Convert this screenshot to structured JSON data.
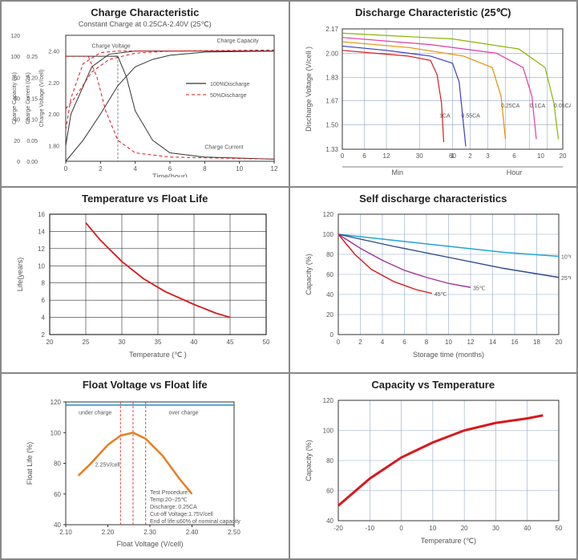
{
  "chart1": {
    "type": "line",
    "title": "Charge Characteristic",
    "subtitle": "Constant Charge at 0.25CA-2.40V (25℃)",
    "y_left_labels": [
      "Charge Capacity (%)",
      "Charge Current (CA)",
      "Charge Voltage (V/cell)"
    ],
    "x_label": "Time(hour)",
    "x_ticks": [
      0,
      2,
      4,
      6,
      8,
      10,
      12
    ],
    "y_capacity_ticks": [
      0,
      20,
      40,
      60,
      80,
      100,
      120
    ],
    "y_current_ticks": [
      0,
      0.05,
      0.1,
      0.15,
      0.2,
      0.25
    ],
    "y_voltage_ticks": [
      1.8,
      2.0,
      2.2,
      2.4
    ],
    "annotations": {
      "cv": "Charge Voltage",
      "cc": "Charge Capacity",
      "ci": "Charge Current"
    },
    "legend": [
      {
        "label": "100%Discharge",
        "color": "#000000"
      },
      {
        "label": "50%Discharge",
        "color": "#d7191c"
      }
    ],
    "colors": {
      "axis": "#333",
      "grid": "#bbb",
      "voltage": "#333",
      "capacity100": "#333",
      "capacity50": "#d7191c",
      "current100": "#333",
      "current50": "#d7191c"
    },
    "series": {
      "voltage100": [
        [
          0,
          1.8
        ],
        [
          0.3,
          2.0
        ],
        [
          1.5,
          2.3
        ],
        [
          2.5,
          2.38
        ],
        [
          4,
          2.4
        ],
        [
          12,
          2.4
        ]
      ],
      "voltage50": [
        [
          0,
          1.9
        ],
        [
          0.3,
          2.1
        ],
        [
          1.0,
          2.32
        ],
        [
          2.0,
          2.39
        ],
        [
          3,
          2.4
        ],
        [
          12,
          2.4
        ]
      ],
      "capacity100": [
        [
          0,
          0
        ],
        [
          1,
          20
        ],
        [
          2,
          45
        ],
        [
          3,
          72
        ],
        [
          4,
          90
        ],
        [
          5,
          97
        ],
        [
          6,
          101
        ],
        [
          8,
          104
        ],
        [
          12,
          105
        ]
      ],
      "capacity50": [
        [
          0,
          50
        ],
        [
          0.5,
          60
        ],
        [
          1.5,
          85
        ],
        [
          2.5,
          97
        ],
        [
          4,
          103
        ],
        [
          6,
          105
        ],
        [
          12,
          106
        ]
      ],
      "current100": [
        [
          0,
          0.25
        ],
        [
          3,
          0.25
        ],
        [
          3.5,
          0.2
        ],
        [
          4,
          0.12
        ],
        [
          5,
          0.05
        ],
        [
          6,
          0.02
        ],
        [
          8,
          0.01
        ],
        [
          12,
          0.005
        ]
      ],
      "current50": [
        [
          0,
          0.25
        ],
        [
          1.3,
          0.25
        ],
        [
          1.8,
          0.2
        ],
        [
          2.3,
          0.12
        ],
        [
          3,
          0.05
        ],
        [
          4,
          0.02
        ],
        [
          6,
          0.01
        ],
        [
          12,
          0.005
        ]
      ]
    }
  },
  "chart2": {
    "type": "line",
    "title": "Discharge Characteristic (25℃)",
    "y_label": "Discharge Voltage (V/cell )",
    "x_label_left": "Min",
    "x_label_right": "Hour",
    "x_ticks_min": [
      0,
      6,
      12,
      30,
      60
    ],
    "x_ticks_hr": [
      1,
      2,
      3,
      6,
      10,
      20
    ],
    "y_ticks": [
      1.33,
      1.5,
      1.67,
      1.83,
      2.0,
      2.17
    ],
    "grid_color": "#93a8c4",
    "background_color": "#ffffff",
    "series": [
      {
        "label": "1CA",
        "color": "#d7191c",
        "data": [
          [
            0,
            2.02
          ],
          [
            0.15,
            2.0
          ],
          [
            0.3,
            1.98
          ],
          [
            0.4,
            1.95
          ],
          [
            0.43,
            1.85
          ],
          [
            0.45,
            1.65
          ],
          [
            0.46,
            1.38
          ]
        ]
      },
      {
        "label": "0.55CA",
        "color": "#3b3bc4",
        "data": [
          [
            0,
            2.05
          ],
          [
            0.2,
            2.02
          ],
          [
            0.4,
            1.98
          ],
          [
            0.5,
            1.93
          ],
          [
            0.53,
            1.8
          ],
          [
            0.55,
            1.5
          ],
          [
            0.56,
            1.35
          ]
        ]
      },
      {
        "label": "0.25CA",
        "color": "#e58f00",
        "data": [
          [
            0,
            2.08
          ],
          [
            0.3,
            2.04
          ],
          [
            0.55,
            1.98
          ],
          [
            0.68,
            1.9
          ],
          [
            0.72,
            1.7
          ],
          [
            0.74,
            1.4
          ]
        ]
      },
      {
        "label": "0.1CA",
        "color": "#e03ba8",
        "data": [
          [
            0,
            2.11
          ],
          [
            0.4,
            2.06
          ],
          [
            0.7,
            2.0
          ],
          [
            0.82,
            1.9
          ],
          [
            0.86,
            1.7
          ],
          [
            0.88,
            1.4
          ]
        ]
      },
      {
        "label": "0.05CA",
        "color": "#8bb500",
        "data": [
          [
            0,
            2.14
          ],
          [
            0.5,
            2.1
          ],
          [
            0.8,
            2.03
          ],
          [
            0.92,
            1.9
          ],
          [
            0.96,
            1.65
          ],
          [
            0.98,
            1.4
          ]
        ]
      }
    ]
  },
  "chart3": {
    "type": "line",
    "title": "Temperature vs Float Life",
    "x_label": "Temperature (℃ )",
    "y_label": "Life(years)",
    "x_ticks": [
      20,
      25,
      30,
      35,
      40,
      45,
      50
    ],
    "y_ticks": [
      2,
      4,
      6,
      8,
      10,
      12,
      14,
      16
    ],
    "grid_color": "#000",
    "line_color": "#d7191c",
    "data": [
      [
        25,
        15
      ],
      [
        27,
        13
      ],
      [
        30,
        10.5
      ],
      [
        33,
        8.5
      ],
      [
        36,
        7
      ],
      [
        40,
        5.5
      ],
      [
        43,
        4.5
      ],
      [
        45,
        4
      ]
    ]
  },
  "chart4": {
    "type": "line",
    "title": "Self discharge characteristics",
    "x_label": "Storage time (months)",
    "y_label": "Capacity (%)",
    "x_ticks": [
      0,
      2,
      4,
      6,
      8,
      10,
      12,
      14,
      16,
      18,
      20
    ],
    "y_ticks": [
      0,
      20,
      40,
      60,
      80,
      100,
      120
    ],
    "grid_color": "#93a8c4",
    "series": [
      {
        "label": "10℃",
        "color": "#1ea6d9",
        "data": [
          [
            0,
            100
          ],
          [
            5,
            94
          ],
          [
            10,
            88
          ],
          [
            15,
            82
          ],
          [
            20,
            78
          ]
        ]
      },
      {
        "label": "25℃",
        "color": "#2b4a8b",
        "data": [
          [
            0,
            100
          ],
          [
            5,
            88
          ],
          [
            10,
            77
          ],
          [
            15,
            66
          ],
          [
            20,
            57
          ]
        ]
      },
      {
        "label": "35℃",
        "color": "#a1339b",
        "data": [
          [
            0,
            100
          ],
          [
            2,
            86
          ],
          [
            4,
            74
          ],
          [
            6,
            64
          ],
          [
            8,
            57
          ],
          [
            10,
            51
          ],
          [
            12,
            47
          ]
        ]
      },
      {
        "label": "45℃",
        "color": "#d7191c",
        "data": [
          [
            0,
            100
          ],
          [
            1.5,
            80
          ],
          [
            3,
            65
          ],
          [
            5,
            53
          ],
          [
            7,
            45
          ],
          [
            8.5,
            41
          ]
        ]
      }
    ]
  },
  "chart5": {
    "type": "line",
    "title": "Float Voltage vs Float life",
    "x_label": "Float Voltage (V/cell)",
    "y_label": "Float Life (%)",
    "x_ticks": [
      2.1,
      2.2,
      2.3,
      2.4,
      2.5
    ],
    "y_ticks": [
      40,
      60,
      80,
      100,
      120
    ],
    "zone_labels": {
      "under": "under charge",
      "over": "over charge"
    },
    "center_voltage_label": "2.25V/cell",
    "note_header": "Test Procedure:",
    "notes": [
      "Temp:20~25℃",
      "Discharge: 0.25CA",
      "Cut-off Voltage:1.75V/cell",
      "End of life:≤60% of nominal capacity"
    ],
    "line_color": "#e67e22",
    "guide_color": "#1e90c8",
    "dash_color": "#d7191c",
    "data": [
      [
        2.13,
        72
      ],
      [
        2.16,
        80
      ],
      [
        2.2,
        92
      ],
      [
        2.23,
        98
      ],
      [
        2.26,
        100
      ],
      [
        2.29,
        96
      ],
      [
        2.33,
        85
      ],
      [
        2.37,
        70
      ],
      [
        2.4,
        60
      ]
    ]
  },
  "chart6": {
    "type": "line",
    "title": "Capacity vs Temperature",
    "x_label": "Temperature (℃)",
    "y_label": "Capacity (%)",
    "x_ticks": [
      -20,
      -10,
      0,
      10,
      20,
      30,
      40,
      50
    ],
    "y_ticks": [
      40,
      60,
      80,
      100,
      120
    ],
    "grid_color": "#93a8c4",
    "line_color": "#d7191c",
    "line_width": 3,
    "data": [
      [
        -20,
        50
      ],
      [
        -10,
        68
      ],
      [
        0,
        82
      ],
      [
        10,
        92
      ],
      [
        20,
        100
      ],
      [
        30,
        105
      ],
      [
        40,
        108
      ],
      [
        45,
        110
      ]
    ]
  }
}
